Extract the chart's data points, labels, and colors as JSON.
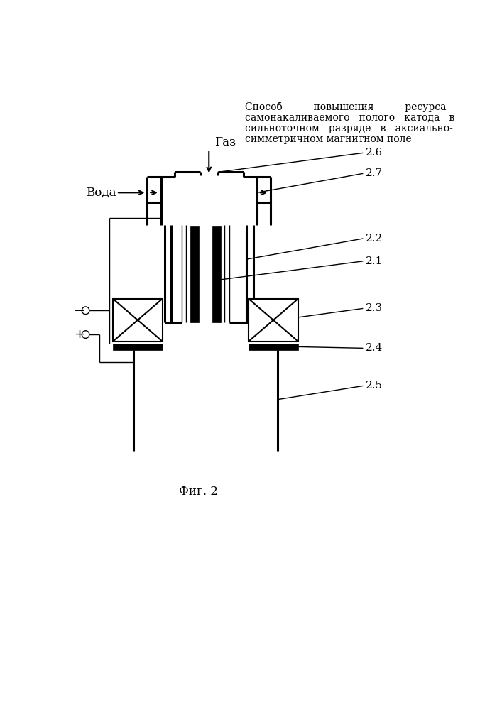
{
  "title_line1": "Способ          повышения          ресурса",
  "title_line2": "самонакаливаемого   полого   катода   в",
  "title_line3": "сильноточном   разряде   в   аксиально-",
  "title_line4": "симметричном магнитном поле",
  "fig_label": "Фиг. 2",
  "gas_label": "Газ",
  "water_label": "Вода",
  "bg_color": "#ffffff",
  "line_color": "#000000",
  "label_fontsize": 11,
  "title_fontsize": 10
}
